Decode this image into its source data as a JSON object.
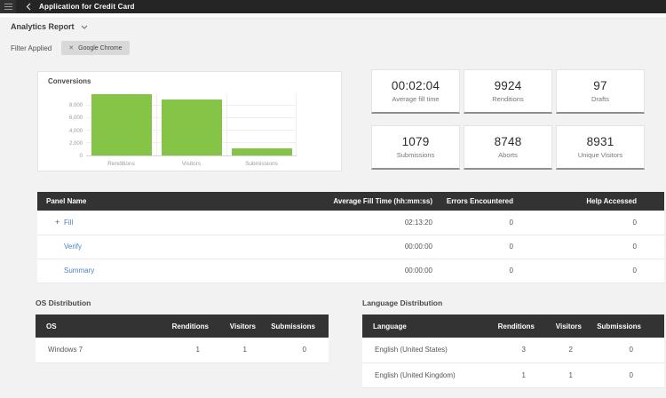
{
  "topbar": {
    "title": "Application for Credit Card"
  },
  "toolbar": {
    "report_selector": "Analytics Report"
  },
  "filter": {
    "label": "Filter Applied",
    "chip": "Google Chrome",
    "remove_icon": "✕"
  },
  "chart_data": {
    "type": "bar",
    "title": "Conversions",
    "categories": [
      "Renditions",
      "Visitors",
      "Submissions"
    ],
    "values": [
      9924,
      8931,
      1079
    ],
    "ylim": [
      0,
      10000
    ],
    "yticks": [
      0,
      2000,
      4000,
      6000,
      8000
    ],
    "ytick_labels": [
      "0",
      "2,000",
      "4,000",
      "6,000",
      "8,000"
    ],
    "xlabel": "",
    "ylabel": "",
    "bar_color": "#85c446",
    "grid": "on",
    "legend": "none"
  },
  "metrics": [
    {
      "value": "00:02:04",
      "label": "Average fill time"
    },
    {
      "value": "9924",
      "label": "Renditions"
    },
    {
      "value": "97",
      "label": "Drafts"
    },
    {
      "value": "1079",
      "label": "Submissions"
    },
    {
      "value": "8748",
      "label": "Aborts"
    },
    {
      "value": "8931",
      "label": "Unique Visitors"
    }
  ],
  "panel_table": {
    "headers": [
      "Panel Name",
      "Average Fill Time (hh:mm:ss)",
      "Errors Encountered",
      "Help Accessed"
    ],
    "rows": [
      {
        "expander": "+",
        "name": "Fill",
        "avg_fill_time": "02:13:20",
        "errors": "0",
        "help": "0"
      },
      {
        "name": "Verify",
        "avg_fill_time": "00:00:00",
        "errors": "0",
        "help": "0"
      },
      {
        "name": "Summary",
        "avg_fill_time": "00:00:00",
        "errors": "0",
        "help": "0"
      }
    ]
  },
  "os_distribution": {
    "title": "OS Distribution",
    "headers": [
      "OS",
      "Renditions",
      "Visitors",
      "Submissions"
    ],
    "rows": [
      {
        "os": "Windows 7",
        "renditions": "1",
        "visitors": "1",
        "submissions": "0"
      }
    ]
  },
  "language_distribution": {
    "title": "Language Distribution",
    "headers": [
      "Language",
      "Renditions",
      "Visitors",
      "Submissions"
    ],
    "rows": [
      {
        "language": "English (United States)",
        "renditions": "3",
        "visitors": "2",
        "submissions": "0"
      },
      {
        "language": "English (United Kingdom)",
        "renditions": "1",
        "visitors": "1",
        "submissions": "0"
      }
    ]
  },
  "colors": {
    "bar_green": "#85c446",
    "link_blue": "#4a81c4",
    "table_header": "#333333",
    "topbar": "#252525"
  }
}
